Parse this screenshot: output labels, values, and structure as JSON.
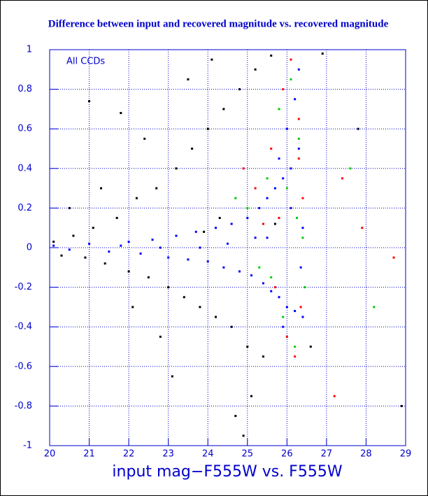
{
  "chart_data": {
    "type": "scatter",
    "title": "Difference between input and recovered magnitude vs. recovered magnitude",
    "xlabel": "input mag−F555W vs. F555W",
    "annotation": "All CCDs",
    "axis_color": "#0000cc",
    "grid": true,
    "xlim": [
      20,
      29
    ],
    "xticks": [
      20,
      21,
      22,
      23,
      24,
      25,
      26,
      27,
      28,
      29
    ],
    "ylim": [
      -1,
      1
    ],
    "yticks": [
      -1,
      -0.8,
      -0.6,
      -0.4,
      -0.2,
      0,
      0.2,
      0.4,
      0.6,
      0.8,
      1
    ],
    "series": [
      {
        "color": "#000000",
        "x": [
          20.1,
          20.3,
          20.6,
          20.9,
          21.1,
          21.4,
          21.7,
          22.0,
          22.2,
          22.5,
          22.7,
          23.0,
          23.2,
          23.4,
          23.6,
          23.8,
          24.0,
          24.2,
          24.4,
          24.6,
          24.8,
          25.0,
          25.2,
          25.4,
          25.6,
          21.0,
          21.8,
          22.4,
          23.5,
          24.1,
          25.1,
          24.7,
          23.1,
          22.8,
          26.6,
          28.9,
          27.8,
          20.5,
          21.3,
          22.1,
          24.9,
          26.9,
          25.7,
          24.3,
          23.9
        ],
        "values": [
          0.03,
          -0.04,
          0.06,
          -0.05,
          0.1,
          -0.08,
          0.15,
          -0.12,
          0.25,
          -0.15,
          0.3,
          -0.2,
          0.4,
          -0.25,
          0.5,
          -0.3,
          0.6,
          -0.35,
          0.7,
          -0.4,
          0.8,
          -0.5,
          0.9,
          -0.55,
          0.97,
          0.74,
          0.68,
          0.55,
          0.85,
          0.95,
          -0.75,
          -0.85,
          -0.65,
          -0.45,
          -0.5,
          -0.8,
          0.6,
          0.2,
          0.3,
          -0.3,
          -0.95,
          0.98,
          0.12,
          0.15,
          0.08
        ]
      },
      {
        "color": "#ff0000",
        "x": [
          25.2,
          25.6,
          25.9,
          26.1,
          26.3,
          25.7,
          26.0,
          26.2,
          26.4,
          25.4,
          24.9,
          26.35,
          27.4,
          27.9,
          28.7,
          27.2,
          25.8,
          26.3
        ],
        "values": [
          0.3,
          0.5,
          0.8,
          0.95,
          0.65,
          -0.2,
          -0.45,
          -0.55,
          0.25,
          0.12,
          0.4,
          -0.3,
          0.35,
          0.1,
          -0.05,
          -0.75,
          0.15,
          0.45
        ]
      },
      {
        "color": "#00cc00",
        "x": [
          25.0,
          25.5,
          25.8,
          26.1,
          26.3,
          25.6,
          25.9,
          26.2,
          26.4,
          24.7,
          26.45,
          27.6,
          28.2,
          26.0,
          25.3,
          26.25
        ],
        "values": [
          0.2,
          0.35,
          0.7,
          0.85,
          0.55,
          -0.15,
          -0.35,
          -0.5,
          0.05,
          0.25,
          -0.2,
          0.4,
          -0.3,
          0.3,
          -0.1,
          0.15
        ]
      },
      {
        "color": "#0000ff",
        "x": [
          20.1,
          20.5,
          21,
          21.5,
          22,
          22.3,
          22.6,
          23,
          23.2,
          23.5,
          23.7,
          24,
          24.2,
          24.4,
          24.6,
          24.8,
          25,
          25.1,
          25.3,
          25.4,
          25.5,
          25.6,
          25.7,
          25.8,
          25.9,
          26,
          26.1,
          26.2,
          26.3,
          26.4,
          26.0,
          26.2,
          25.8,
          26.3,
          25.9,
          26.1,
          25.2,
          24.5,
          23.8,
          26.4,
          26.35,
          25.5,
          22.8,
          21.8
        ],
        "values": [
          0.01,
          -0.01,
          0.02,
          -0.02,
          0.03,
          -0.03,
          0.04,
          -0.05,
          0.06,
          -0.06,
          0.08,
          -0.07,
          0.1,
          -0.1,
          0.12,
          -0.12,
          0.15,
          -0.14,
          0.2,
          -0.18,
          0.25,
          -0.22,
          0.3,
          -0.25,
          0.35,
          -0.3,
          0.4,
          -0.32,
          0.5,
          -0.35,
          0.6,
          0.75,
          0.45,
          0.9,
          -0.4,
          0.2,
          0.05,
          0.02,
          0.0,
          0.1,
          -0.1,
          0.05,
          0.0,
          0.01
        ]
      }
    ]
  }
}
